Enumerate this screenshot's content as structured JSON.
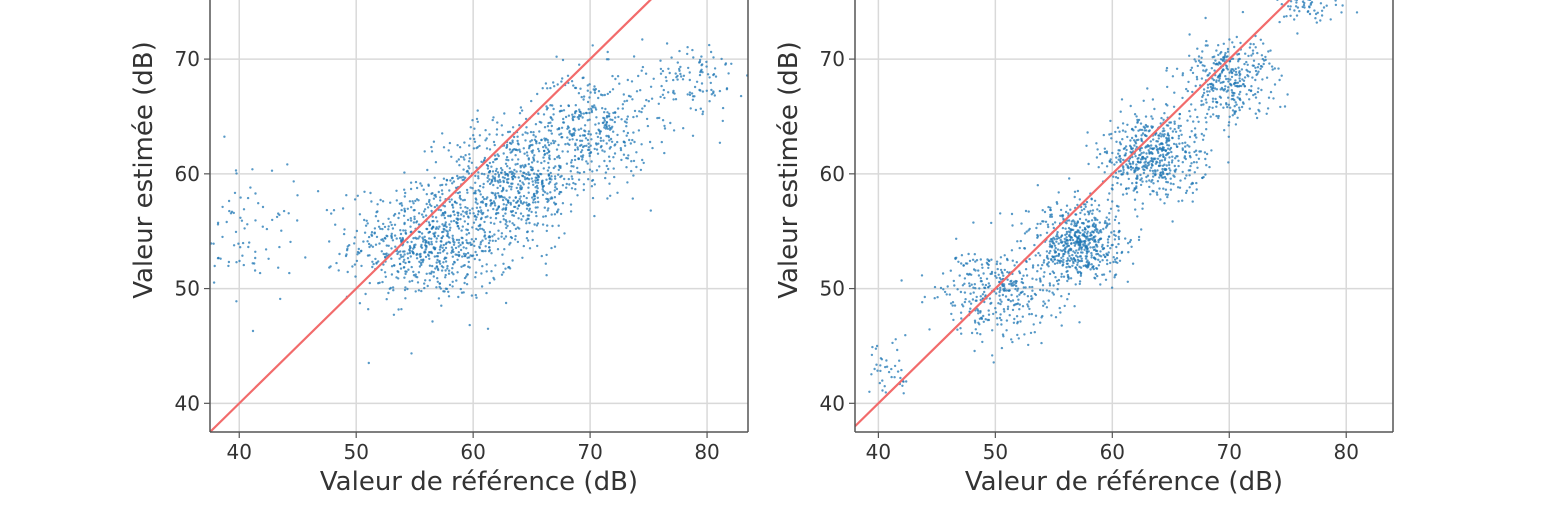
{
  "chart_data": [
    {
      "type": "scatter",
      "xlabel": "Valeur de référence (dB)",
      "ylabel": "Valeur estimée (dB)",
      "xlim": [
        37.5,
        83.5
      ],
      "ylim": [
        37.5,
        75.5
      ],
      "xticks": [
        40,
        50,
        60,
        70,
        80
      ],
      "yticks": [
        40,
        50,
        60,
        70
      ],
      "grid": true,
      "reference_line": {
        "x": [
          37.5,
          75.5
        ],
        "y": [
          37.5,
          75.5
        ],
        "color": "#f26b6b"
      },
      "point_color": "#1f77b4",
      "point_count": 2000,
      "clusters": [
        {
          "x_center": 56.5,
          "y_center": 54.0,
          "x_spread": 3.5,
          "y_spread": 2.5,
          "weight": 0.38
        },
        {
          "x_center": 63.5,
          "y_center": 59.5,
          "x_spread": 3.0,
          "y_spread": 2.5,
          "weight": 0.32
        },
        {
          "x_center": 70.0,
          "y_center": 64.0,
          "x_spread": 2.5,
          "y_spread": 2.5,
          "weight": 0.2
        },
        {
          "x_center": 78.5,
          "y_center": 68.0,
          "x_spread": 2.0,
          "y_spread": 2.0,
          "weight": 0.06
        },
        {
          "x_center": 41.0,
          "y_center": 55.0,
          "x_spread": 2.0,
          "y_spread": 3.0,
          "weight": 0.04
        }
      ]
    },
    {
      "type": "scatter",
      "xlabel": "Valeur de référence (dB)",
      "ylabel": "Valeur estimée (dB)",
      "xlim": [
        38,
        84
      ],
      "ylim": [
        37.5,
        75.5
      ],
      "xticks": [
        40,
        50,
        60,
        70,
        80
      ],
      "yticks": [
        40,
        50,
        60,
        70
      ],
      "grid": true,
      "reference_line": {
        "x": [
          38,
          76
        ],
        "y": [
          38,
          76
        ],
        "color": "#f26b6b"
      },
      "point_color": "#1f77b4",
      "point_count": 2000,
      "clusters": [
        {
          "x_center": 50.0,
          "y_center": 49.5,
          "x_spread": 2.5,
          "y_spread": 2.0,
          "weight": 0.18
        },
        {
          "x_center": 57.0,
          "y_center": 54.0,
          "x_spread": 2.0,
          "y_spread": 1.8,
          "weight": 0.3
        },
        {
          "x_center": 63.5,
          "y_center": 61.5,
          "x_spread": 2.2,
          "y_spread": 1.8,
          "weight": 0.28
        },
        {
          "x_center": 70.0,
          "y_center": 68.0,
          "x_spread": 2.0,
          "y_spread": 1.8,
          "weight": 0.18
        },
        {
          "x_center": 76.5,
          "y_center": 75.0,
          "x_spread": 1.8,
          "y_spread": 1.0,
          "weight": 0.04
        },
        {
          "x_center": 41.0,
          "y_center": 43.5,
          "x_spread": 1.2,
          "y_spread": 1.2,
          "weight": 0.02
        }
      ]
    }
  ]
}
